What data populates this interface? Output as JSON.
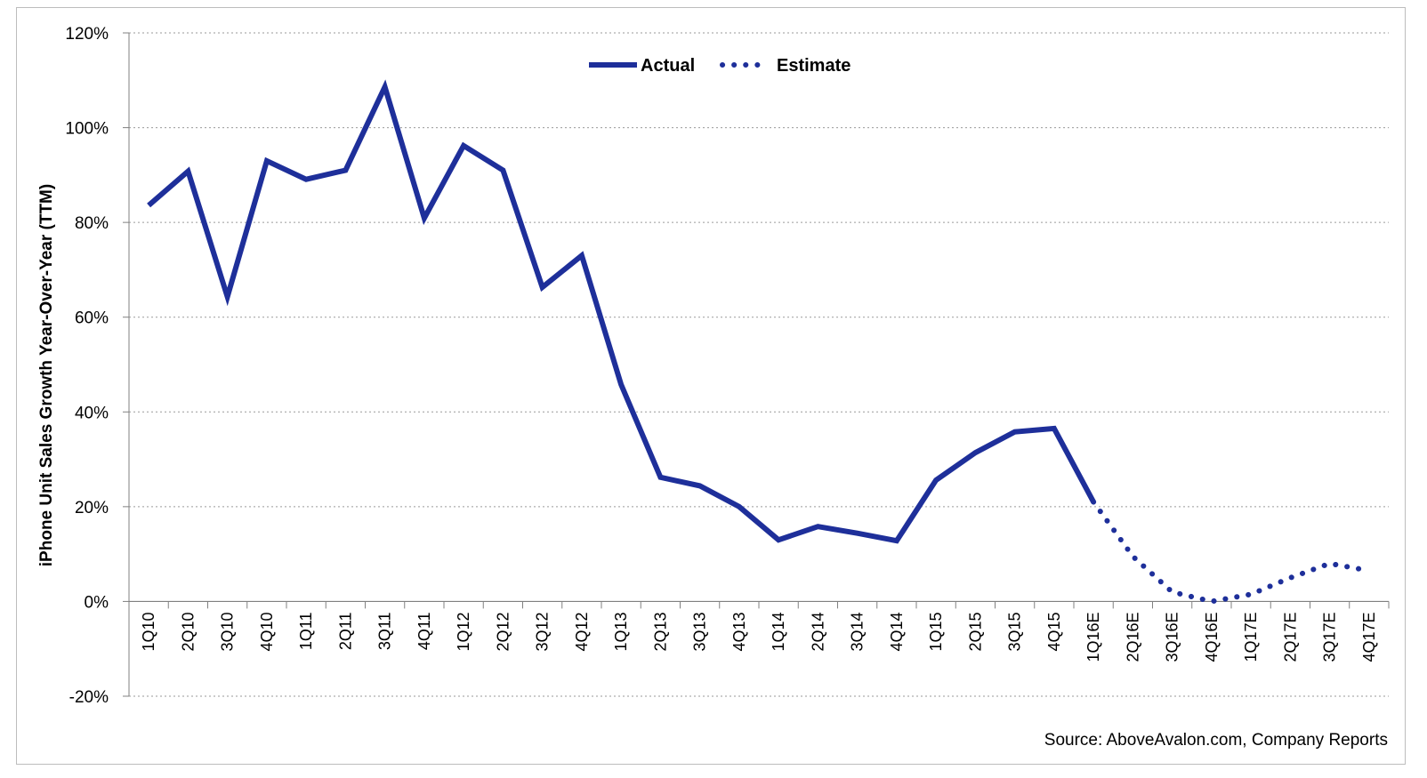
{
  "chart_data": {
    "type": "line",
    "ylabel": "iPhone Unit Sales Growth Year-Over-Year  (TTM)",
    "xlabel": "",
    "ylim": [
      -20,
      120
    ],
    "yticks": [
      "-20%",
      "0%",
      "20%",
      "40%",
      "60%",
      "80%",
      "100%",
      "120%"
    ],
    "ytick_values": [
      -20,
      0,
      20,
      40,
      60,
      80,
      100,
      120
    ],
    "categories": [
      "1Q10",
      "2Q10",
      "3Q10",
      "4Q10",
      "1Q11",
      "2Q11",
      "3Q11",
      "4Q11",
      "1Q12",
      "2Q12",
      "3Q12",
      "4Q12",
      "1Q13",
      "2Q13",
      "3Q13",
      "4Q13",
      "1Q14",
      "2Q14",
      "3Q14",
      "4Q14",
      "1Q15",
      "2Q15",
      "3Q15",
      "4Q15",
      "1Q16E",
      "2Q16E",
      "3Q16E",
      "4Q16E",
      "1Q17E",
      "2Q17E",
      "3Q17E",
      "4Q17E"
    ],
    "grid": true,
    "legend_position": "top-center",
    "series": [
      {
        "name": "Actual",
        "style": "solid",
        "color": "#1e2f9a",
        "values": [
          83.6,
          90.8,
          64.3,
          93.0,
          89.1,
          91.0,
          108.6,
          80.9,
          96.2,
          91.0,
          66.3,
          73.0,
          45.8,
          26.2,
          24.4,
          20.0,
          13.0,
          15.8,
          14.4,
          12.8,
          25.6,
          31.4,
          35.8,
          36.5,
          21.0,
          null,
          null,
          null,
          null,
          null,
          null,
          null
        ]
      },
      {
        "name": "Estimate",
        "style": "dotted",
        "color": "#1e2f9a",
        "values": [
          null,
          null,
          null,
          null,
          null,
          null,
          null,
          null,
          null,
          null,
          null,
          null,
          null,
          null,
          null,
          null,
          null,
          null,
          null,
          null,
          null,
          null,
          null,
          null,
          21.0,
          9.5,
          2.0,
          0.0,
          1.5,
          5.0,
          8.0,
          6.5
        ]
      }
    ],
    "annotations": [
      "Source: AboveAvalon.com, Company Reports"
    ]
  }
}
